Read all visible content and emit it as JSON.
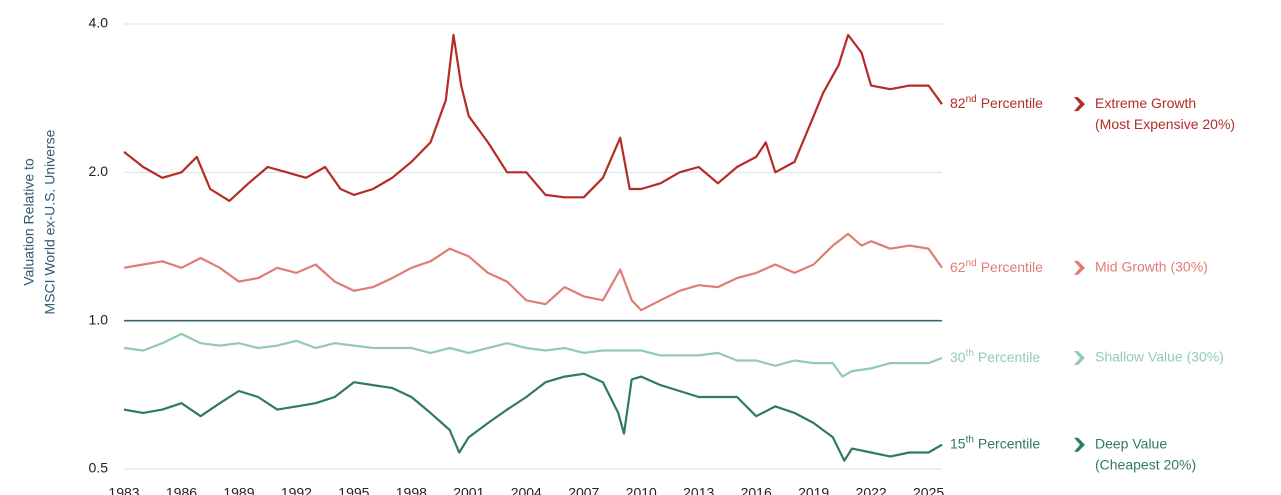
{
  "chart_data": {
    "type": "line",
    "ylabel": [
      "Valuation Relative to",
      "MSCI World ex-U.S. Universe"
    ],
    "log_scale": true,
    "grid": true,
    "baseline": 1,
    "ylim": [
      0.5,
      4
    ],
    "yticks": [
      0.5,
      {
        "value": 1,
        "label": "1.0"
      },
      {
        "value": 2,
        "label": "2.0"
      },
      {
        "value": 4,
        "label": "4.0"
      }
    ],
    "xlim": [
      1983,
      2025.7
    ],
    "xticks": [
      1983,
      1986,
      1989,
      1992,
      1995,
      1998,
      2001,
      2004,
      2007,
      2010,
      2013,
      2016,
      2019,
      2022,
      2025
    ],
    "series": [
      {
        "name_lines": [
          "Extreme Growth",
          "(Most Expensive 20%)"
        ],
        "rank": "82",
        "suffix": "nd",
        "word": "Percentile",
        "color": "#b52b25",
        "x": [
          1983,
          1984,
          1985,
          1986,
          1986.8,
          1987.5,
          1988.5,
          1989.5,
          1990.5,
          1991.5,
          1992.5,
          1993.5,
          1994.3,
          1995,
          1996,
          1997,
          1998,
          1999,
          1999.8,
          2000.2,
          2000.6,
          2001,
          2002,
          2003,
          2004,
          2005,
          2006,
          2007,
          2008,
          2008.9,
          2009.4,
          2010,
          2011,
          2012,
          2013,
          2014,
          2015,
          2016,
          2016.5,
          2017,
          2018,
          2019,
          2019.5,
          2020.3,
          2020.8,
          2021.5,
          2022,
          2023,
          2024,
          2025,
          2025.7
        ],
        "values": [
          2.2,
          2.05,
          1.95,
          2.0,
          2.15,
          1.85,
          1.75,
          1.9,
          2.05,
          2.0,
          1.95,
          2.05,
          1.85,
          1.8,
          1.85,
          1.95,
          2.1,
          2.3,
          2.8,
          3.8,
          3.0,
          2.6,
          2.3,
          2.0,
          2.0,
          1.8,
          1.78,
          1.78,
          1.95,
          2.35,
          1.85,
          1.85,
          1.9,
          2.0,
          2.05,
          1.9,
          2.05,
          2.15,
          2.3,
          2.0,
          2.1,
          2.6,
          2.9,
          3.3,
          3.8,
          3.5,
          3.0,
          2.95,
          3.0,
          3.0,
          2.75
        ]
      },
      {
        "name_lines": [
          "Mid Growth (30%)"
        ],
        "rank": "62",
        "suffix": "nd",
        "word": "Percentile",
        "color": "#e07c74",
        "x": [
          1983,
          1984,
          1985,
          1986,
          1987,
          1988,
          1989,
          1990,
          1991,
          1992,
          1993,
          1994,
          1995,
          1996,
          1997,
          1998,
          1999,
          2000,
          2001,
          2002,
          2003,
          2004,
          2005,
          2006,
          2007,
          2008,
          2008.9,
          2009.5,
          2010,
          2011,
          2012,
          2013,
          2014,
          2015,
          2016,
          2017,
          2018,
          2019,
          2020,
          2020.8,
          2021.5,
          2022,
          2023,
          2024,
          2025,
          2025.7
        ],
        "values": [
          1.28,
          1.3,
          1.32,
          1.28,
          1.34,
          1.28,
          1.2,
          1.22,
          1.28,
          1.25,
          1.3,
          1.2,
          1.15,
          1.17,
          1.22,
          1.28,
          1.32,
          1.4,
          1.35,
          1.25,
          1.2,
          1.1,
          1.08,
          1.17,
          1.12,
          1.1,
          1.27,
          1.1,
          1.05,
          1.1,
          1.15,
          1.18,
          1.17,
          1.22,
          1.25,
          1.3,
          1.25,
          1.3,
          1.42,
          1.5,
          1.42,
          1.45,
          1.4,
          1.42,
          1.4,
          1.28
        ]
      },
      {
        "name_lines": [
          "Shallow Value (30%)"
        ],
        "rank": "30",
        "suffix": "th",
        "word": "Percentile",
        "color": "#92cbb2",
        "x": [
          1983,
          1984,
          1985,
          1986,
          1987,
          1988,
          1989,
          1990,
          1991,
          1992,
          1993,
          1994,
          1995,
          1996,
          1997,
          1998,
          1999,
          2000,
          2001,
          2002,
          2003,
          2004,
          2005,
          2006,
          2007,
          2008,
          2009,
          2010,
          2011,
          2012,
          2013,
          2014,
          2015,
          2016,
          2017,
          2018,
          2019,
          2020,
          2020.5,
          2021,
          2022,
          2023,
          2024,
          2025,
          2025.7
        ],
        "values": [
          0.88,
          0.87,
          0.9,
          0.94,
          0.9,
          0.89,
          0.9,
          0.88,
          0.89,
          0.91,
          0.88,
          0.9,
          0.89,
          0.88,
          0.88,
          0.88,
          0.86,
          0.88,
          0.86,
          0.88,
          0.9,
          0.88,
          0.87,
          0.88,
          0.86,
          0.87,
          0.87,
          0.87,
          0.85,
          0.85,
          0.85,
          0.86,
          0.83,
          0.83,
          0.81,
          0.83,
          0.82,
          0.82,
          0.77,
          0.79,
          0.8,
          0.82,
          0.82,
          0.82,
          0.84
        ]
      },
      {
        "name_lines": [
          "Deep Value",
          "(Cheapest 20%)"
        ],
        "rank": "15",
        "suffix": "th",
        "word": "Percentile",
        "color": "#2f7a62",
        "x": [
          1983,
          1984,
          1985,
          1986,
          1987,
          1988,
          1989,
          1990,
          1991,
          1992,
          1993,
          1994,
          1995,
          1996,
          1997,
          1998,
          1999,
          2000,
          2000.5,
          2001,
          2002,
          2003,
          2004,
          2005,
          2006,
          2007,
          2008,
          2008.8,
          2009.1,
          2009.5,
          2010,
          2011,
          2012,
          2013,
          2014,
          2015,
          2016,
          2017,
          2018,
          2019,
          2020,
          2020.6,
          2021,
          2022,
          2023,
          2024,
          2025,
          2025.7
        ],
        "values": [
          0.66,
          0.65,
          0.66,
          0.68,
          0.64,
          0.68,
          0.72,
          0.7,
          0.66,
          0.67,
          0.68,
          0.7,
          0.75,
          0.74,
          0.73,
          0.7,
          0.65,
          0.6,
          0.54,
          0.58,
          0.62,
          0.66,
          0.7,
          0.75,
          0.77,
          0.78,
          0.75,
          0.65,
          0.59,
          0.76,
          0.77,
          0.74,
          0.72,
          0.7,
          0.7,
          0.7,
          0.64,
          0.67,
          0.65,
          0.62,
          0.58,
          0.52,
          0.55,
          0.54,
          0.53,
          0.54,
          0.54,
          0.56
        ]
      }
    ]
  }
}
